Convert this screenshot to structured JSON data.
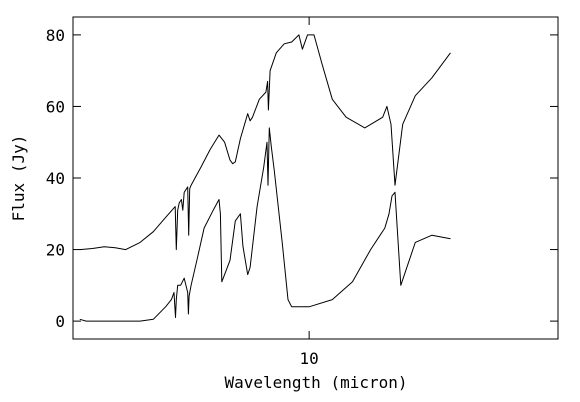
{
  "chart_data": {
    "type": "line",
    "title": "",
    "xlabel": "Wavelength (micron)",
    "ylabel": "Flux (Jy)",
    "x_scale": "log",
    "xlim": [
      2.4,
      45
    ],
    "ylim": [
      -5,
      85
    ],
    "grid": false,
    "legend": "none",
    "x_ticks": [
      {
        "value": 10,
        "label": "10"
      }
    ],
    "y_ticks": [
      {
        "value": 0,
        "label": "0"
      },
      {
        "value": 20,
        "label": "20"
      },
      {
        "value": 40,
        "label": "40"
      },
      {
        "value": 60,
        "label": "60"
      },
      {
        "value": 80,
        "label": "80"
      }
    ],
    "series": [
      {
        "x": [
          2.5,
          2.7,
          2.9,
          3.1,
          3.3,
          3.6,
          3.9,
          4.2,
          4.45,
          4.48,
          4.52,
          4.56,
          4.62,
          4.66,
          4.7,
          4.8,
          4.83,
          4.86,
          4.9,
          5.2,
          5.5,
          5.8,
          6.0,
          6.2,
          6.3,
          6.4,
          6.6,
          6.9,
          7.0,
          7.1,
          7.4,
          7.7,
          7.78,
          7.82,
          7.9,
          8.2,
          8.6,
          9.0,
          9.4,
          9.6,
          9.9,
          10.3,
          10.8,
          11.5,
          12.5,
          14.0,
          15.6,
          16.0,
          16.4,
          16.8,
          17.6,
          19.0,
          21.0,
          23.5
        ],
        "values": [
          20,
          20.3,
          20.8,
          20.5,
          20,
          22,
          25,
          29,
          32,
          20,
          31,
          33,
          34,
          31,
          36,
          37.5,
          24,
          37,
          38,
          43,
          48,
          52,
          50,
          45,
          44,
          44.5,
          51,
          58,
          56,
          57,
          62,
          64,
          67,
          59,
          70,
          75,
          77.5,
          78,
          80,
          76,
          80,
          80,
          72,
          62,
          57,
          54,
          57,
          60,
          55,
          38,
          55,
          63,
          68,
          75
        ]
      },
      {
        "x": [
          2.5,
          2.6,
          2.8,
          3.0,
          3.3,
          3.6,
          3.9,
          4.2,
          4.35,
          4.42,
          4.46,
          4.48,
          4.52,
          4.6,
          4.7,
          4.8,
          4.82,
          4.84,
          4.9,
          5.1,
          5.3,
          5.6,
          5.8,
          5.85,
          5.9,
          6.0,
          6.2,
          6.4,
          6.6,
          6.7,
          6.9,
          7.0,
          7.3,
          7.6,
          7.75,
          7.8,
          7.86,
          7.95,
          8.1,
          8.5,
          8.8,
          9.0,
          10.0,
          11.5,
          13.0,
          14.5,
          15.8,
          16.2,
          16.5,
          16.8,
          17.4,
          19.0,
          21.0,
          23.5
        ],
        "values": [
          0.5,
          0,
          0,
          0,
          0,
          0,
          0.5,
          4,
          6,
          8,
          1,
          6,
          10,
          10,
          12,
          8,
          2,
          7,
          10,
          18,
          26,
          31,
          34,
          30,
          11,
          13,
          17,
          28,
          30,
          21,
          13,
          15,
          32,
          43,
          50,
          38,
          54,
          49,
          42,
          22,
          6,
          4,
          4,
          6,
          11,
          20,
          26,
          30,
          35,
          36,
          10,
          22,
          24,
          23
        ]
      }
    ]
  }
}
